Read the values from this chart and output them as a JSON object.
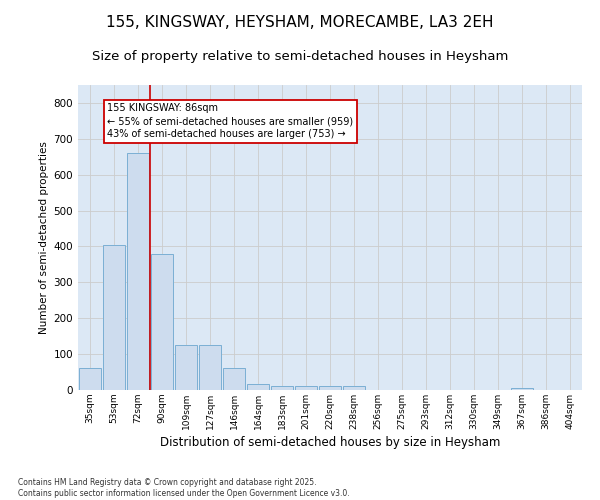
{
  "title_line1": "155, KINGSWAY, HEYSHAM, MORECAMBE, LA3 2EH",
  "title_line2": "Size of property relative to semi-detached houses in Heysham",
  "xlabel": "Distribution of semi-detached houses by size in Heysham",
  "ylabel": "Number of semi-detached properties",
  "categories": [
    "35sqm",
    "53sqm",
    "72sqm",
    "90sqm",
    "109sqm",
    "127sqm",
    "146sqm",
    "164sqm",
    "183sqm",
    "201sqm",
    "220sqm",
    "238sqm",
    "256sqm",
    "275sqm",
    "293sqm",
    "312sqm",
    "330sqm",
    "349sqm",
    "367sqm",
    "386sqm",
    "404sqm"
  ],
  "values": [
    62,
    405,
    660,
    378,
    125,
    125,
    62,
    18,
    12,
    10,
    10,
    10,
    0,
    0,
    0,
    0,
    0,
    0,
    5,
    0,
    0
  ],
  "bar_color": "#cddcee",
  "bar_edge_color": "#7bafd4",
  "redline_label": "155 KINGSWAY: 86sqm",
  "annotation_smaller": "← 55% of semi-detached houses are smaller (959)",
  "annotation_larger": "43% of semi-detached houses are larger (753) →",
  "annotation_box_color": "#ffffff",
  "annotation_box_edge": "#cc0000",
  "red_line_color": "#cc0000",
  "ylim": [
    0,
    850
  ],
  "yticks": [
    0,
    100,
    200,
    300,
    400,
    500,
    600,
    700,
    800
  ],
  "grid_color": "#cccccc",
  "bg_color": "#dce8f5",
  "footer": "Contains HM Land Registry data © Crown copyright and database right 2025.\nContains public sector information licensed under the Open Government Licence v3.0.",
  "title_fontsize": 11,
  "subtitle_fontsize": 9.5
}
